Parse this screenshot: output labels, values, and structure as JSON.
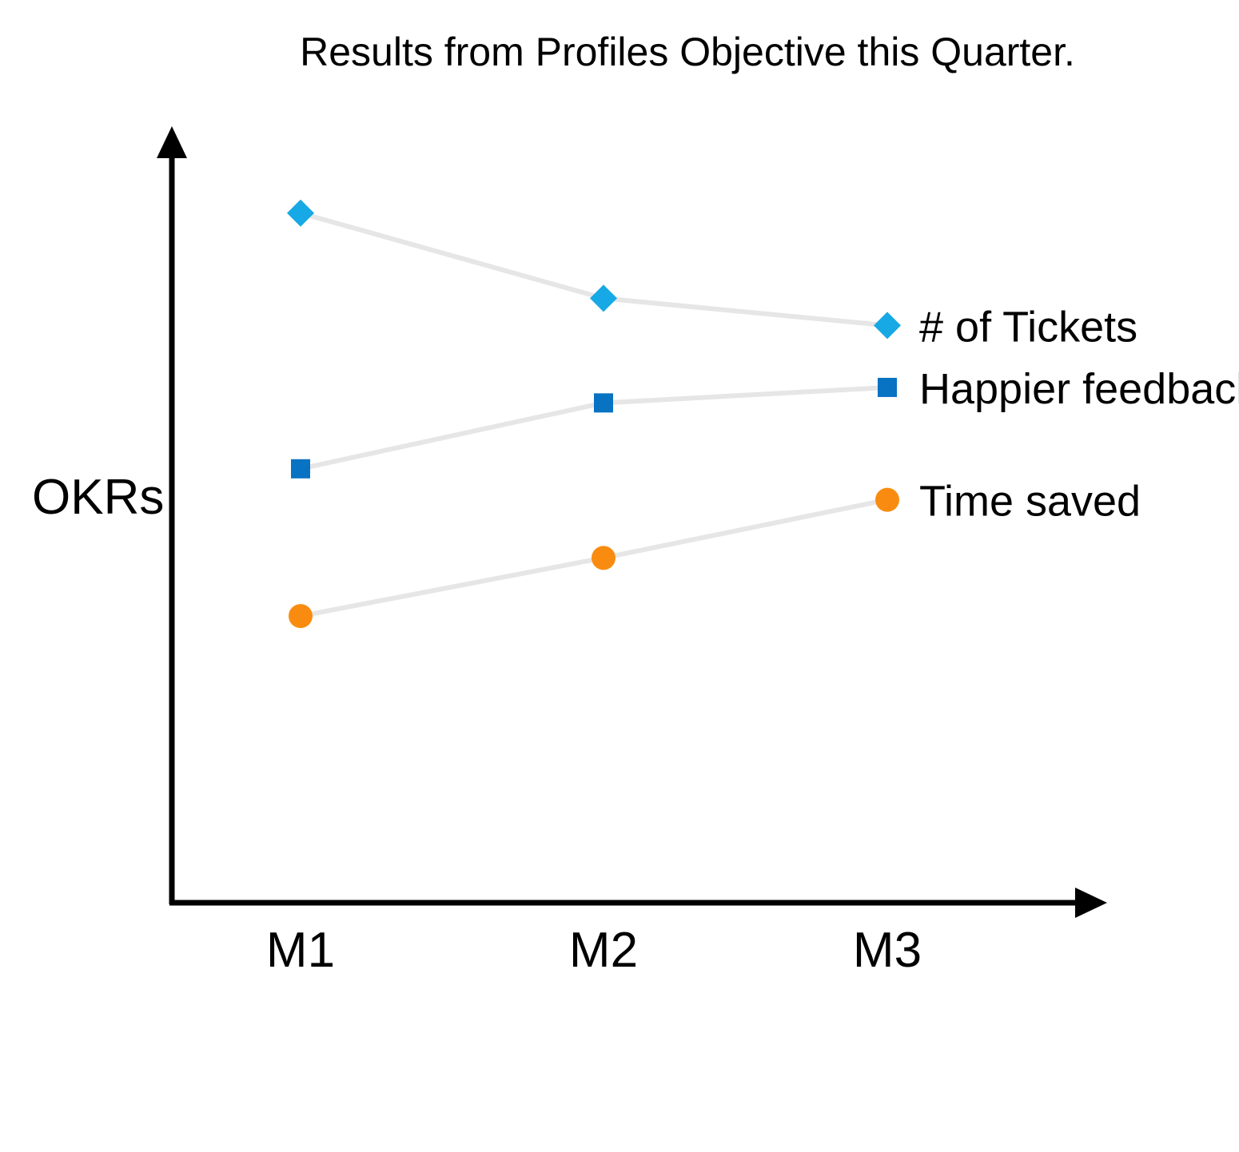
{
  "chart_data": {
    "type": "line",
    "title": "Results from Profiles Objective this Quarter.",
    "xlabel": "",
    "ylabel": "OKRs",
    "categories": [
      "M1",
      "M2",
      "M3"
    ],
    "ylim": [
      0,
      100
    ],
    "grid": false,
    "legend": "inline-right",
    "line_color": "#e6e6e6",
    "series": [
      {
        "name": "# of Tickets",
        "values": [
          89,
          78,
          74.5
        ],
        "marker": "diamond",
        "color": "#17a9e5"
      },
      {
        "name": "Happier feedback",
        "values": [
          56,
          64.5,
          66.5
        ],
        "marker": "square",
        "color": "#0872c3"
      },
      {
        "name": "Time saved",
        "values": [
          37,
          44.5,
          52
        ],
        "marker": "circle",
        "color": "#f98c10"
      }
    ]
  }
}
